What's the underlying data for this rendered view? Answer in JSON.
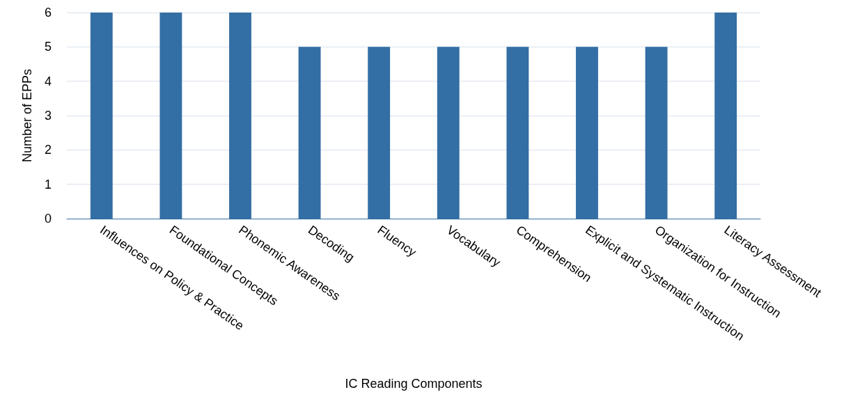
{
  "chart_data": {
    "type": "bar",
    "xlabel": "IC Reading Components",
    "ylabel": "Number of EPPs",
    "categories": [
      "Influences on Policy & Practice",
      "Foundational Concepts",
      "Phonemic Awareness",
      "Decoding",
      "Fluency",
      "Vocabulary",
      "Comprehension",
      "Explicit and Systematic Instruction",
      "Organization for Instruction",
      "Literacy Assessment"
    ],
    "values": [
      6,
      6,
      6,
      5,
      5,
      5,
      5,
      5,
      5,
      6
    ],
    "color": "#336ea5",
    "ylim": [
      0,
      6
    ],
    "yticks": [
      0,
      1,
      2,
      3,
      4,
      5,
      6
    ],
    "grid": "y"
  }
}
